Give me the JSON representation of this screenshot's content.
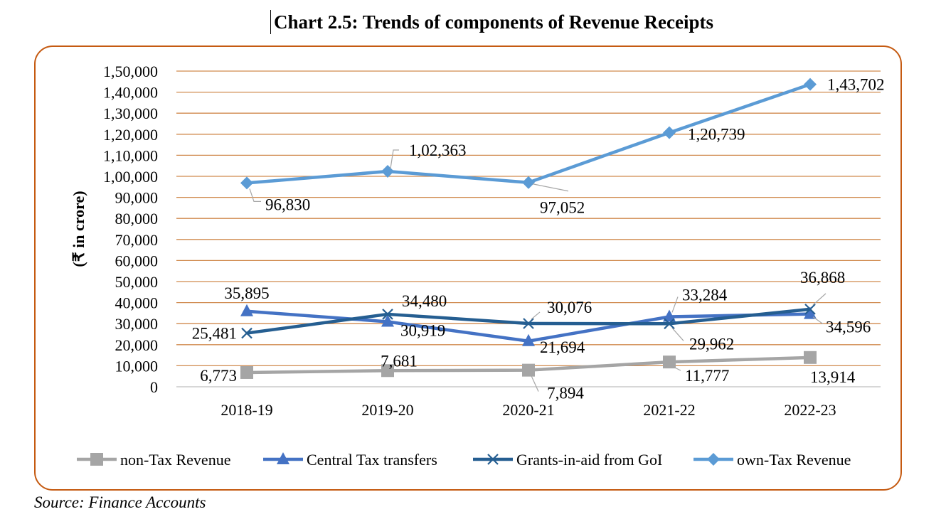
{
  "title": "Chart 2.5: Trends of components of Revenue Receipts",
  "source": "Source: Finance Accounts",
  "chart_data": {
    "type": "line",
    "categories": [
      "2018-19",
      "2019-20",
      "2020-21",
      "2021-22",
      "2022-23"
    ],
    "ylabel": "(₹ in crore)",
    "ylim": [
      0,
      150000
    ],
    "ytick_values": [
      0,
      10000,
      20000,
      30000,
      40000,
      50000,
      60000,
      70000,
      80000,
      90000,
      100000,
      110000,
      120000,
      130000,
      140000,
      150000
    ],
    "ytick_labels": [
      "0",
      "10,000",
      "20,000",
      "30,000",
      "40,000",
      "50,000",
      "60,000",
      "70,000",
      "80,000",
      "90,000",
      "1,00,000",
      "1,10,000",
      "1,20,000",
      "1,30,000",
      "1,40,000",
      "1,50,000"
    ],
    "grid": true,
    "legend_position": "bottom",
    "series": [
      {
        "name": "non-Tax Revenue",
        "marker": "square",
        "color": "#a5a5a5",
        "values": [
          6773,
          7681,
          7894,
          11777,
          13914
        ],
        "labels": [
          "6,773",
          "7,681",
          "7,894",
          "11,777",
          "13,914"
        ]
      },
      {
        "name": "Central Tax transfers",
        "marker": "triangle",
        "color": "#4472c4",
        "values": [
          35895,
          30919,
          21694,
          33284,
          34596
        ],
        "labels": [
          "35,895",
          "30,919",
          "21,694",
          "33,284",
          "34,596"
        ]
      },
      {
        "name": "Grants-in-aid from GoI",
        "marker": "x",
        "color": "#255e91",
        "values": [
          25481,
          34480,
          30076,
          29962,
          36868
        ],
        "labels": [
          "25,481",
          "34,480",
          "30,076",
          "29,962",
          "36,868"
        ]
      },
      {
        "name": "own-Tax Revenue",
        "marker": "diamond",
        "color": "#5b9bd5",
        "values": [
          96830,
          102363,
          97052,
          120739,
          143702
        ],
        "labels": [
          "96,830",
          "1,02,363",
          "97,052",
          "1,20,739",
          "1,43,702"
        ]
      }
    ]
  }
}
